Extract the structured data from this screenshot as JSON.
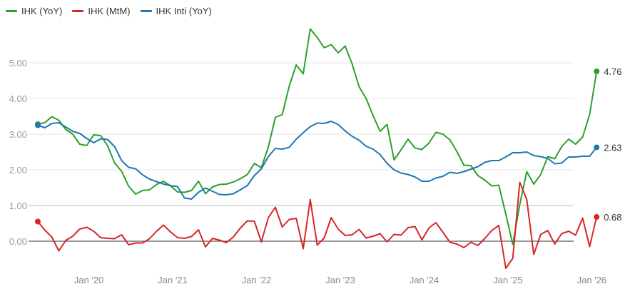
{
  "chart_data": {
    "type": "line",
    "title": "",
    "xlabel": "",
    "ylabel": "",
    "ylim": [
      -1,
      6
    ],
    "grid": true,
    "legend_position": "top-left",
    "x_start": "2019-06",
    "x_end": "2026-02",
    "x_frequency": "monthly",
    "x_tick_labels": [
      "Jan '20",
      "Jan '21",
      "Jan '22",
      "Jan '23",
      "Jan '24",
      "Jan '25",
      "Jan '26"
    ],
    "y_tick_labels": [
      "0.00",
      "1.00",
      "2.00",
      "3.00",
      "4.00",
      "5.00"
    ],
    "series": [
      {
        "name": "IHK (YoY)",
        "color": "#2ca02c",
        "end_label": "4.76",
        "values": [
          3.28,
          3.32,
          3.49,
          3.39,
          3.13,
          3.0,
          2.72,
          2.68,
          2.98,
          2.96,
          2.67,
          2.19,
          1.96,
          1.54,
          1.32,
          1.42,
          1.44,
          1.59,
          1.68,
          1.55,
          1.38,
          1.37,
          1.42,
          1.68,
          1.33,
          1.52,
          1.59,
          1.6,
          1.66,
          1.75,
          1.87,
          2.18,
          2.06,
          2.64,
          3.47,
          3.55,
          4.35,
          4.94,
          4.69,
          5.95,
          5.71,
          5.42,
          5.51,
          5.28,
          5.47,
          4.97,
          4.33,
          4.0,
          3.52,
          3.08,
          3.27,
          2.28,
          2.56,
          2.86,
          2.61,
          2.57,
          2.75,
          3.05,
          3.0,
          2.84,
          2.51,
          2.13,
          2.12,
          1.84,
          1.71,
          1.55,
          1.57,
          0.76,
          -0.09,
          1.03,
          1.95,
          1.6,
          1.87,
          2.37,
          2.31,
          2.65,
          2.86,
          2.72,
          2.92,
          3.55,
          4.76
        ]
      },
      {
        "name": "IHK (MtM)",
        "color": "#d62728",
        "end_label": "0.68",
        "values": [
          0.55,
          0.31,
          0.12,
          -0.27,
          0.02,
          0.14,
          0.34,
          0.39,
          0.28,
          0.1,
          0.08,
          0.07,
          0.18,
          -0.1,
          -0.05,
          -0.05,
          0.07,
          0.28,
          0.45,
          0.26,
          0.1,
          0.08,
          0.13,
          0.32,
          -0.16,
          0.08,
          0.03,
          -0.04,
          0.12,
          0.37,
          0.57,
          0.56,
          -0.02,
          0.66,
          0.95,
          0.4,
          0.61,
          0.64,
          -0.21,
          1.17,
          -0.11,
          0.09,
          0.66,
          0.34,
          0.16,
          0.18,
          0.33,
          0.09,
          0.14,
          0.21,
          -0.02,
          0.19,
          0.17,
          0.38,
          0.41,
          0.04,
          0.37,
          0.52,
          0.25,
          -0.03,
          -0.08,
          -0.18,
          -0.03,
          -0.12,
          0.08,
          0.3,
          0.44,
          -0.76,
          -0.48,
          1.65,
          1.17,
          -0.37,
          0.19,
          0.3,
          -0.08,
          0.21,
          0.28,
          0.17,
          0.65,
          -0.15,
          0.68
        ]
      },
      {
        "name": "IHK Inti (YoY)",
        "color": "#1f77b4",
        "end_label": "2.63",
        "values": [
          3.25,
          3.18,
          3.3,
          3.32,
          3.2,
          3.08,
          3.02,
          2.88,
          2.76,
          2.87,
          2.85,
          2.65,
          2.26,
          2.07,
          2.03,
          1.86,
          1.74,
          1.67,
          1.6,
          1.56,
          1.53,
          1.21,
          1.18,
          1.37,
          1.49,
          1.4,
          1.31,
          1.3,
          1.33,
          1.44,
          1.56,
          1.84,
          2.03,
          2.37,
          2.6,
          2.58,
          2.63,
          2.86,
          3.04,
          3.21,
          3.31,
          3.3,
          3.36,
          3.27,
          3.09,
          2.94,
          2.83,
          2.66,
          2.58,
          2.43,
          2.18,
          2.0,
          1.91,
          1.87,
          1.8,
          1.68,
          1.68,
          1.77,
          1.82,
          1.93,
          1.9,
          1.95,
          2.02,
          2.09,
          2.21,
          2.26,
          2.26,
          2.36,
          2.48,
          2.48,
          2.5,
          2.4,
          2.37,
          2.32,
          2.17,
          2.19,
          2.36,
          2.36,
          2.38,
          2.38,
          2.63
        ]
      }
    ]
  }
}
